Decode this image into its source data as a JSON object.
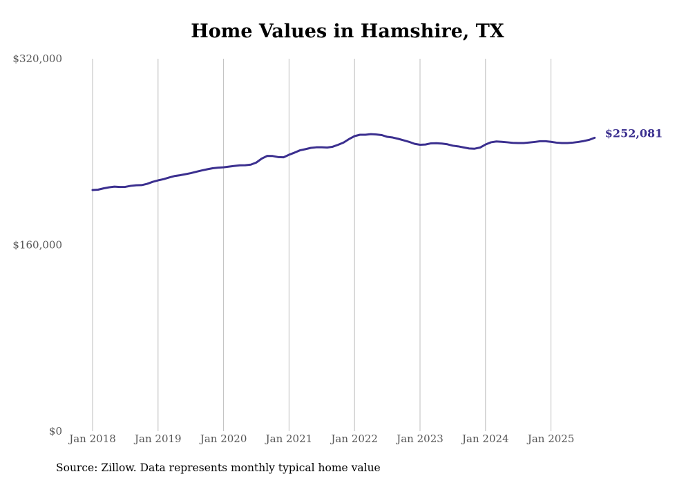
{
  "chart_data": {
    "type": "line",
    "title": "Home Values in Hamshire, TX",
    "xlabel": "",
    "ylabel": "",
    "ylim": [
      0,
      320000
    ],
    "y_ticks": [
      {
        "value": 0,
        "label": "$0"
      },
      {
        "value": 160000,
        "label": "$160,000"
      },
      {
        "value": 320000,
        "label": "$320,000"
      }
    ],
    "x_ticks": [
      "Jan 2018",
      "Jan 2019",
      "Jan 2020",
      "Jan 2021",
      "Jan 2022",
      "Jan 2023",
      "Jan 2024",
      "Jan 2025"
    ],
    "x_start_year": 2018,
    "grid": "vertical",
    "series": [
      {
        "name": "Typical home value",
        "color": "#3b2f8f",
        "end_label": "$252,081",
        "values": [
          207200,
          207500,
          208600,
          209500,
          210100,
          209800,
          209900,
          210800,
          211300,
          211400,
          212500,
          214200,
          215500,
          216500,
          217900,
          219200,
          219900,
          220800,
          221700,
          222900,
          224000,
          225000,
          225900,
          226400,
          226700,
          227300,
          227900,
          228400,
          228500,
          229000,
          230800,
          234200,
          236500,
          236400,
          235500,
          235300,
          237500,
          239300,
          241300,
          242300,
          243400,
          243900,
          243900,
          243700,
          244400,
          246100,
          248000,
          251000,
          253500,
          254700,
          254700,
          255200,
          254900,
          254400,
          252900,
          252300,
          251200,
          249900,
          248600,
          246900,
          246100,
          246300,
          247300,
          247400,
          247100,
          246500,
          245300,
          244700,
          243800,
          242900,
          242700,
          243700,
          246300,
          248200,
          248900,
          248600,
          248200,
          247700,
          247600,
          247600,
          248000,
          248500,
          249100,
          249100,
          248600,
          247900,
          247600,
          247600,
          247900,
          248500,
          249300,
          250300,
          252081
        ]
      }
    ]
  },
  "footer": {
    "source": "Source: Zillow. Data represents monthly typical home value"
  }
}
